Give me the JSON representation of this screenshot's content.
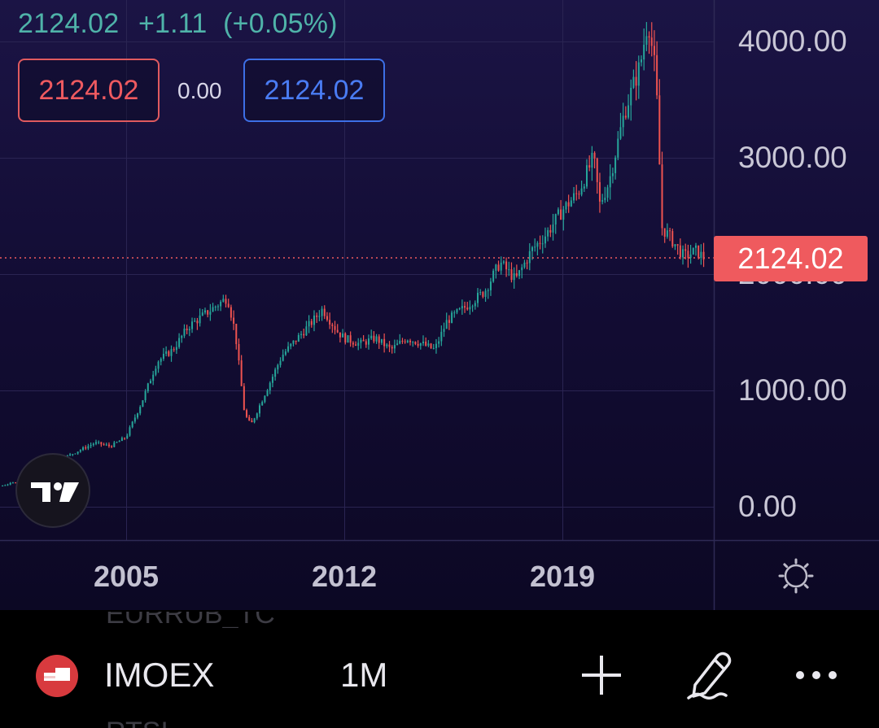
{
  "header": {
    "last_price": "2124.02",
    "change": "+1.11",
    "change_pct": "(+0.05%)",
    "sell_price": "2124.02",
    "spread": "0.00",
    "buy_price": "2124.02"
  },
  "chart_data": {
    "type": "candlestick",
    "interval": "1M",
    "y_ticks": [
      "4000.00",
      "3000.00",
      "1000.00",
      "0.00"
    ],
    "x_ticks": [
      "2005",
      "2012",
      "2019"
    ],
    "last_price_label": "2124.02",
    "ylim": [
      0,
      4300
    ],
    "xlim": [
      1999,
      2028.5
    ],
    "trend": [
      [
        2000.0,
        150
      ],
      [
        2001.0,
        180
      ],
      [
        2002.0,
        250
      ],
      [
        2003.0,
        420
      ],
      [
        2004.0,
        550
      ],
      [
        2004.5,
        520
      ],
      [
        2005.0,
        600
      ],
      [
        2005.5,
        900
      ],
      [
        2006.0,
        1250
      ],
      [
        2006.5,
        1350
      ],
      [
        2007.0,
        1550
      ],
      [
        2007.5,
        1650
      ],
      [
        2008.0,
        1750
      ],
      [
        2008.25,
        1800
      ],
      [
        2008.5,
        1500
      ],
      [
        2008.8,
        800
      ],
      [
        2009.0,
        700
      ],
      [
        2009.5,
        1000
      ],
      [
        2010.0,
        1300
      ],
      [
        2010.5,
        1450
      ],
      [
        2011.0,
        1600
      ],
      [
        2011.3,
        1700
      ],
      [
        2011.8,
        1500
      ],
      [
        2012.0,
        1450
      ],
      [
        2012.5,
        1400
      ],
      [
        2013.0,
        1450
      ],
      [
        2013.5,
        1350
      ],
      [
        2014.0,
        1450
      ],
      [
        2014.5,
        1400
      ],
      [
        2014.9,
        1350
      ],
      [
        2015.3,
        1600
      ],
      [
        2015.8,
        1700
      ],
      [
        2016.5,
        1850
      ],
      [
        2017.0,
        2100
      ],
      [
        2017.5,
        1950
      ],
      [
        2018.0,
        2200
      ],
      [
        2018.5,
        2350
      ],
      [
        2019.0,
        2550
      ],
      [
        2019.5,
        2700
      ],
      [
        2020.0,
        3000
      ],
      [
        2020.2,
        2600
      ],
      [
        2020.5,
        2800
      ],
      [
        2021.0,
        3400
      ],
      [
        2021.5,
        3800
      ],
      [
        2021.75,
        4200
      ],
      [
        2022.0,
        3700
      ],
      [
        2022.2,
        2400
      ],
      [
        2022.5,
        2300
      ],
      [
        2022.9,
        2150
      ],
      [
        2023.3,
        2200
      ],
      [
        2023.6,
        2124
      ]
    ]
  },
  "bottom_bar": {
    "symbol": "IMOEX",
    "interval": "1M",
    "ghost_above": "EURRUB_TC",
    "ghost_below": "RTSI"
  },
  "icons": {
    "logo": "tradingview-logo-icon",
    "settings": "settings-icon",
    "flag": "russia-flag-icon",
    "add": "plus-icon",
    "draw": "pen-icon",
    "more": "more-dots-icon"
  },
  "colors": {
    "up": "#26a69a",
    "down": "#ef5350",
    "sell": "#ef5a60",
    "buy": "#4a7cf3",
    "last_price_bg": "#ef5a5e"
  }
}
